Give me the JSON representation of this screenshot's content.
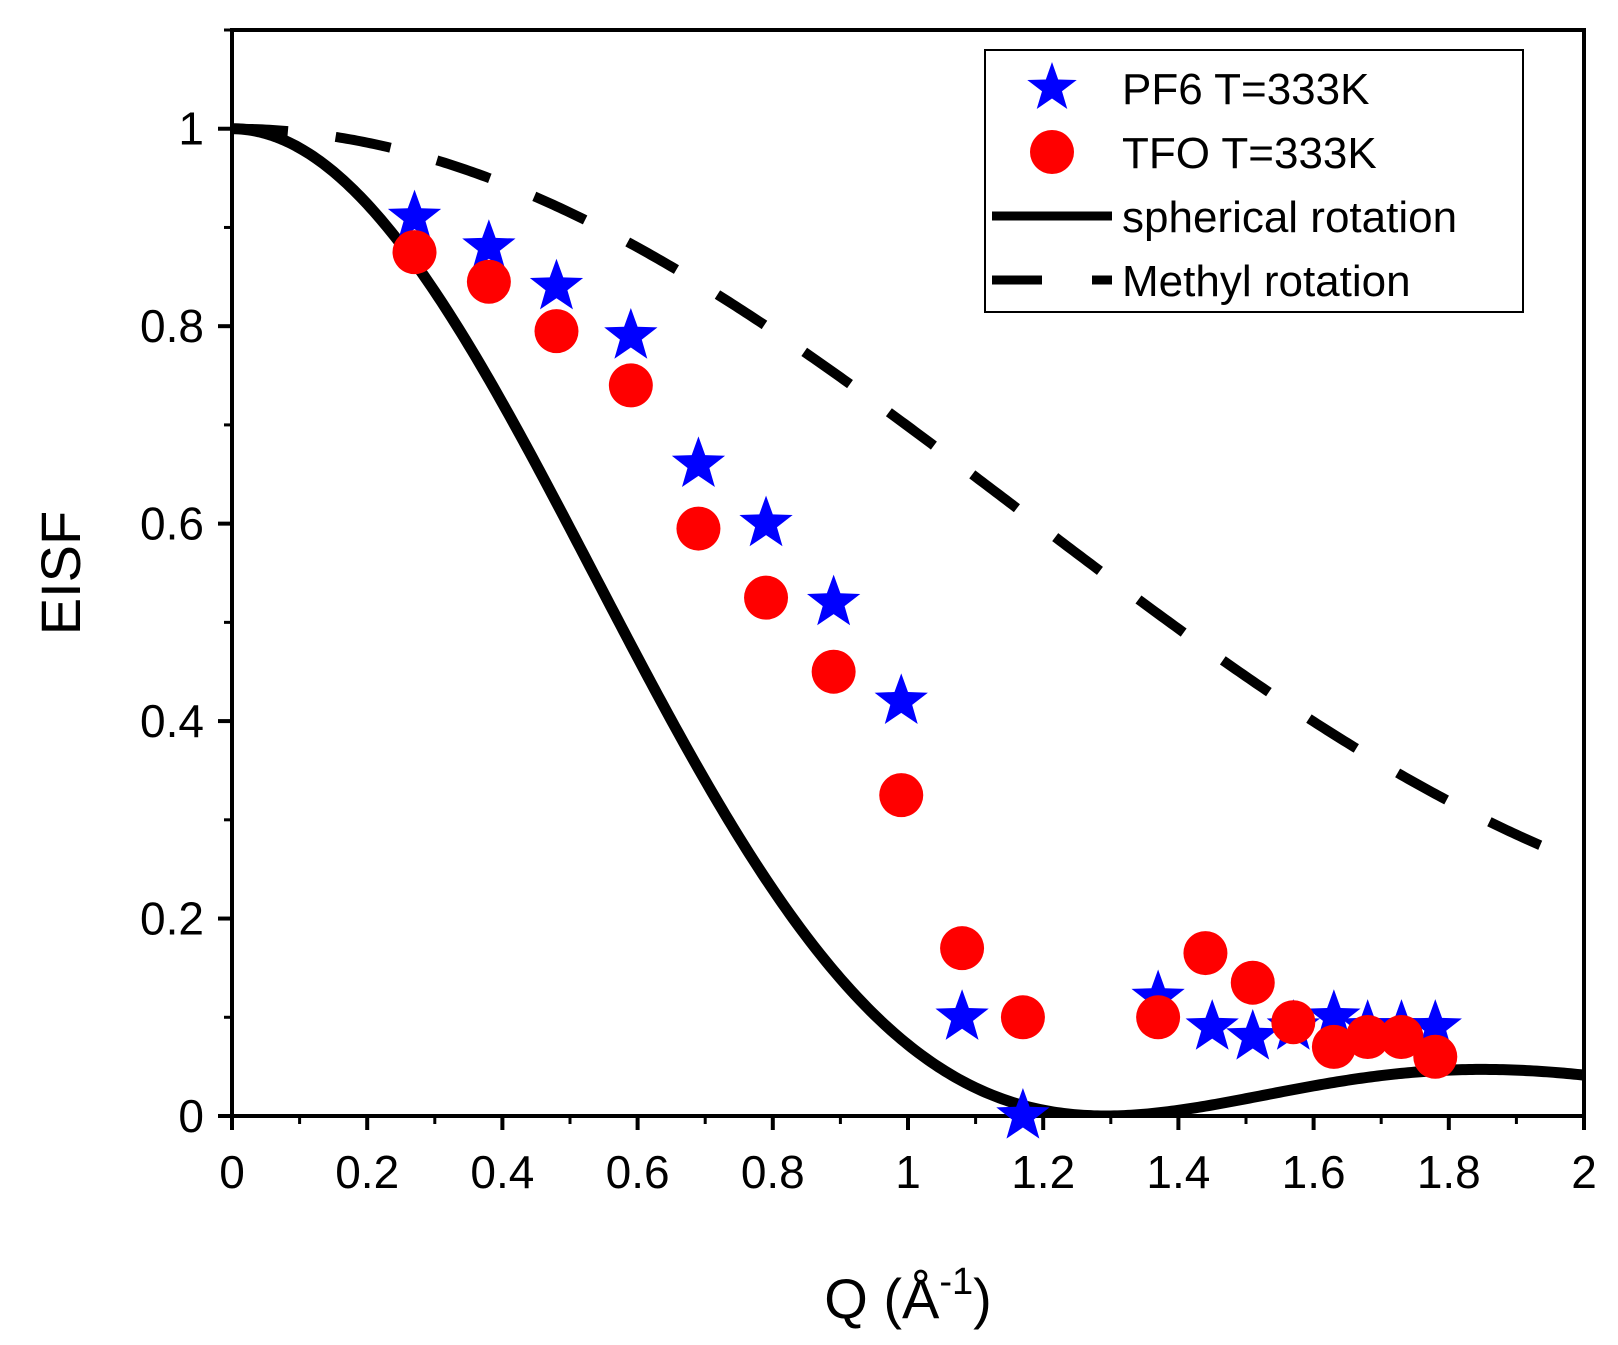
{
  "chart_data": {
    "type": "scatter",
    "xlabel": "Q (Å",
    "xlabel_sup": "-1",
    "xlabel_close": ")",
    "ylabel": "EISF",
    "xlim": [
      0,
      2
    ],
    "ylim": [
      0,
      1.1
    ],
    "xticks": [
      "0",
      "0.2",
      "0.4",
      "0.6",
      "0.8",
      "1",
      "1.2",
      "1.4",
      "1.6",
      "1.8",
      "2"
    ],
    "yticks": [
      "0",
      "0.2",
      "0.4",
      "0.6",
      "0.8",
      "1"
    ],
    "grid": false,
    "legend_position": "top-right",
    "series": [
      {
        "name": "PF6 T=333K",
        "marker": "star",
        "color": "#0000ff",
        "x": [
          0.27,
          0.38,
          0.48,
          0.59,
          0.69,
          0.79,
          0.89,
          0.99,
          1.08,
          1.17,
          1.37,
          1.45,
          1.51,
          1.57,
          1.63,
          1.68,
          1.73,
          1.78
        ],
        "y": [
          0.91,
          0.88,
          0.84,
          0.79,
          0.66,
          0.6,
          0.52,
          0.42,
          0.1,
          0.0,
          0.12,
          0.09,
          0.08,
          0.09,
          0.1,
          0.09,
          0.09,
          0.09
        ]
      },
      {
        "name": "TFO T=333K",
        "marker": "circle",
        "color": "#ff0000",
        "x": [
          0.27,
          0.38,
          0.48,
          0.59,
          0.69,
          0.79,
          0.89,
          0.99,
          1.08,
          1.17,
          1.37,
          1.44,
          1.51,
          1.57,
          1.63,
          1.68,
          1.73,
          1.78
        ],
        "y": [
          0.875,
          0.845,
          0.795,
          0.74,
          0.595,
          0.525,
          0.45,
          0.325,
          0.17,
          0.1,
          0.1,
          0.165,
          0.135,
          0.095,
          0.07,
          0.08,
          0.08,
          0.06
        ]
      },
      {
        "name": "spherical rotation",
        "style": "solid",
        "color": "#000000",
        "model": "j0_squared",
        "radius": 2.43
      },
      {
        "name": "Methyl rotation",
        "style": "dashed",
        "color": "#000000",
        "model": "methyl",
        "radius": 1.03
      }
    ]
  }
}
